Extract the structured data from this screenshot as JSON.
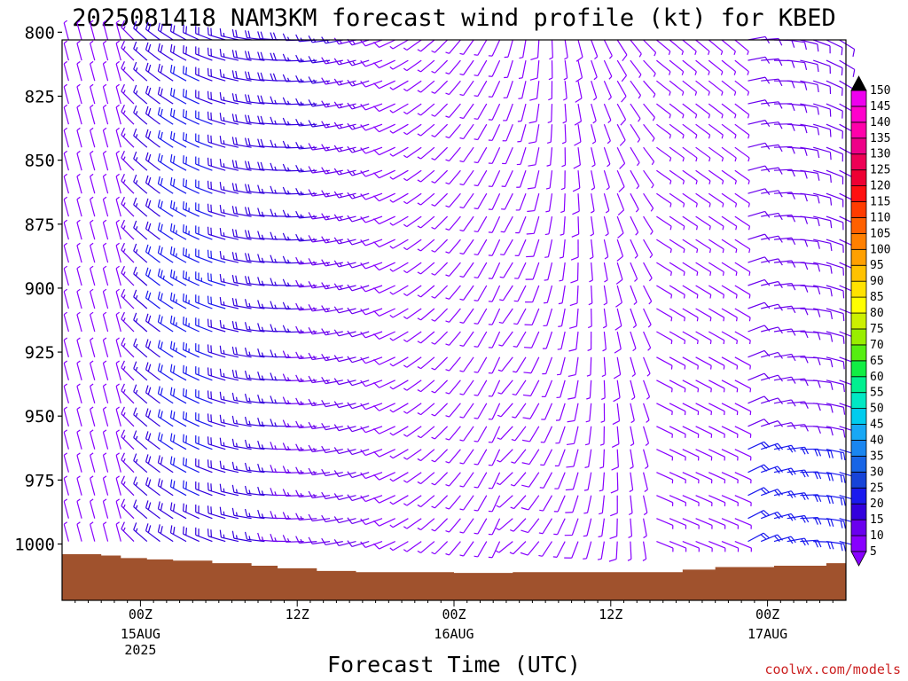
{
  "chart_data": {
    "type": "wind_barb_profile",
    "title": "2025081418 NAM3KM forecast wind profile (kt) for KBED",
    "xlabel": "Forecast Time (UTC)",
    "ylabel": "",
    "y_axis": {
      "unit": "hPa",
      "range": [
        803,
        1022
      ],
      "inverted": true,
      "ticks": [
        800,
        825,
        850,
        875,
        900,
        925,
        950,
        975,
        1000
      ]
    },
    "x_axis": {
      "unit": "hours since 2025-08-14 18Z",
      "range": [
        0,
        60
      ],
      "ticks": [
        {
          "hour": 6,
          "label": "00Z",
          "sub": "15AUG",
          "sub2": "2025"
        },
        {
          "hour": 18,
          "label": "12Z",
          "sub": "",
          "sub2": ""
        },
        {
          "hour": 30,
          "label": "00Z",
          "sub": "16AUG",
          "sub2": ""
        },
        {
          "hour": 42,
          "label": "12Z",
          "sub": "",
          "sub2": ""
        },
        {
          "hour": 54,
          "label": "00Z",
          "sub": "17AUG",
          "sub2": ""
        }
      ]
    },
    "levels_hpa": [
      803,
      811,
      819,
      828,
      836,
      845,
      854,
      863,
      872,
      881,
      890,
      899,
      908,
      917,
      927,
      936,
      945,
      954,
      963,
      972,
      981,
      990,
      999,
      1008,
      1016
    ],
    "hours": [
      0,
      1,
      2,
      3,
      4,
      5,
      6,
      7,
      8,
      9,
      10,
      11,
      12,
      13,
      14,
      15,
      16,
      17,
      18,
      19,
      20,
      21,
      22,
      23,
      24,
      25,
      26,
      27,
      28,
      29,
      30,
      31,
      32,
      33,
      34,
      35,
      36,
      37,
      38,
      39,
      40,
      41,
      42,
      43,
      44,
      45,
      46,
      47,
      48,
      49,
      50,
      51,
      52,
      53,
      54,
      55,
      56,
      57,
      58,
      59
    ],
    "surface_pressure_hpa": [
      [
        0,
        1004
      ],
      [
        3,
        1004.5
      ],
      [
        4.5,
        1005.5
      ],
      [
        6.5,
        1006
      ],
      [
        8.5,
        1006.5
      ],
      [
        11.5,
        1007.5
      ],
      [
        14.5,
        1008.5
      ],
      [
        16.5,
        1009.5
      ],
      [
        19.5,
        1010.5
      ],
      [
        22.5,
        1011
      ],
      [
        27.5,
        1011
      ],
      [
        30,
        1011.3
      ],
      [
        34.5,
        1012
      ],
      [
        34.5,
        1011
      ],
      [
        44.5,
        1011
      ],
      [
        47.5,
        1010
      ],
      [
        50,
        1009
      ],
      [
        54.5,
        1008.5
      ],
      [
        58.5,
        1007.5
      ],
      [
        60,
        1006
      ]
    ],
    "colorbar": {
      "unit": "kt",
      "labels": [
        5,
        10,
        15,
        20,
        25,
        30,
        35,
        40,
        45,
        50,
        55,
        60,
        65,
        70,
        75,
        80,
        85,
        90,
        95,
        100,
        105,
        110,
        115,
        120,
        125,
        130,
        135,
        140,
        145,
        150
      ],
      "colors": [
        "#8800ff",
        "#6a00ee",
        "#3300dd",
        "#1a1aee",
        "#1744d8",
        "#1865e6",
        "#1a86f0",
        "#18a8f5",
        "#00ccee",
        "#00e8c4",
        "#00f090",
        "#11ee44",
        "#55ee11",
        "#99ee00",
        "#ccf000",
        "#ffff00",
        "#ffe200",
        "#ffc200",
        "#ffa000",
        "#ff8000",
        "#ff6000",
        "#ff3c00",
        "#ff1010",
        "#ee0033",
        "#ee0055",
        "#ee0088",
        "#ff00aa",
        "#ff00cc",
        "#ee00ee"
      ],
      "under_color": "#8800ff",
      "over_color": "#000000"
    },
    "barb_color_scale": "speed (kt), colored per colorbar"
  },
  "credit": "coolwx.com/models"
}
